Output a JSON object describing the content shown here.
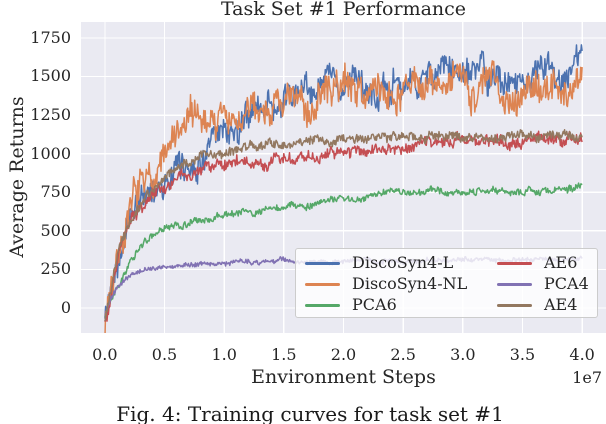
{
  "figure": {
    "caption": "Fig. 4: Training curves for task set #1"
  },
  "chart_data": {
    "type": "line",
    "title": "Task Set #1 Performance",
    "xlabel": "Environment Steps",
    "ylabel": "Average Returns",
    "x_offset_label": "1e7",
    "x_ticks": [
      0.0,
      0.5,
      1.0,
      1.5,
      2.0,
      2.5,
      3.0,
      3.5,
      4.0
    ],
    "x_tick_labels": [
      "0.0",
      "0.5",
      "1.0",
      "1.5",
      "2.0",
      "2.5",
      "3.0",
      "3.5",
      "4.0"
    ],
    "y_ticks": [
      0,
      250,
      500,
      750,
      1000,
      1250,
      1500,
      1750
    ],
    "xlim": [
      -0.2,
      4.2
    ],
    "ylim": [
      -162,
      1853
    ],
    "grid": true,
    "style": {
      "axes_background": "#EAEAF2",
      "grid_color": "#FFFFFF",
      "text_color": "#262626",
      "legend_border": "#CCCCCC"
    },
    "legend": {
      "position": "lower right",
      "columns": 2
    },
    "series": [
      {
        "name": "DiscoSyn4-L",
        "color": "#4C72B0",
        "seed": 42,
        "jitter": 70,
        "wander": 120,
        "envelope": [
          [
            0,
            -70
          ],
          [
            0.03,
            40
          ],
          [
            0.07,
            220
          ],
          [
            0.12,
            400
          ],
          [
            0.18,
            520
          ],
          [
            0.25,
            640
          ],
          [
            0.33,
            720
          ],
          [
            0.42,
            790
          ],
          [
            0.5,
            840
          ],
          [
            0.55,
            790
          ],
          [
            0.62,
            880
          ],
          [
            0.7,
            930
          ],
          [
            0.8,
            1000
          ],
          [
            0.9,
            1060
          ],
          [
            1.0,
            1140
          ],
          [
            1.1,
            1200
          ],
          [
            1.2,
            1250
          ],
          [
            1.35,
            1300
          ],
          [
            1.5,
            1330
          ],
          [
            1.65,
            1360
          ],
          [
            1.8,
            1390
          ],
          [
            2.0,
            1440
          ],
          [
            2.2,
            1460
          ],
          [
            2.4,
            1450
          ],
          [
            2.6,
            1480
          ],
          [
            2.8,
            1500
          ],
          [
            3.0,
            1520
          ],
          [
            3.2,
            1480
          ],
          [
            3.4,
            1490
          ],
          [
            3.6,
            1520
          ],
          [
            3.8,
            1550
          ],
          [
            3.9,
            1580
          ],
          [
            4.0,
            1620
          ]
        ]
      },
      {
        "name": "DiscoSyn4-NL",
        "color": "#DD8452",
        "seed": 7,
        "jitter": 85,
        "wander": 140,
        "envelope": [
          [
            0,
            -90
          ],
          [
            0.03,
            60
          ],
          [
            0.07,
            260
          ],
          [
            0.12,
            440
          ],
          [
            0.18,
            570
          ],
          [
            0.25,
            680
          ],
          [
            0.33,
            780
          ],
          [
            0.42,
            880
          ],
          [
            0.5,
            980
          ],
          [
            0.6,
            1090
          ],
          [
            0.7,
            1180
          ],
          [
            0.8,
            1240
          ],
          [
            0.9,
            1200
          ],
          [
            1.0,
            1260
          ],
          [
            1.1,
            1160
          ],
          [
            1.2,
            1240
          ],
          [
            1.35,
            1330
          ],
          [
            1.5,
            1350
          ],
          [
            1.6,
            1280
          ],
          [
            1.75,
            1330
          ],
          [
            1.9,
            1420
          ],
          [
            2.0,
            1450
          ],
          [
            2.2,
            1400
          ],
          [
            2.4,
            1440
          ],
          [
            2.6,
            1410
          ],
          [
            2.8,
            1430
          ],
          [
            3.0,
            1450
          ],
          [
            3.2,
            1470
          ],
          [
            3.35,
            1400
          ],
          [
            3.5,
            1420
          ],
          [
            3.65,
            1450
          ],
          [
            3.8,
            1390
          ],
          [
            3.9,
            1440
          ],
          [
            4.0,
            1490
          ]
        ]
      },
      {
        "name": "PCA6",
        "color": "#55A868",
        "seed": 13,
        "jitter": 16,
        "wander": 30,
        "envelope": [
          [
            0,
            -50
          ],
          [
            0.05,
            60
          ],
          [
            0.1,
            160
          ],
          [
            0.2,
            300
          ],
          [
            0.3,
            400
          ],
          [
            0.4,
            465
          ],
          [
            0.5,
            505
          ],
          [
            0.6,
            530
          ],
          [
            0.75,
            555
          ],
          [
            0.9,
            580
          ],
          [
            1.0,
            600
          ],
          [
            1.2,
            625
          ],
          [
            1.4,
            645
          ],
          [
            1.5,
            648
          ],
          [
            1.6,
            655
          ],
          [
            1.75,
            675
          ],
          [
            1.9,
            688
          ],
          [
            2.0,
            690
          ],
          [
            2.1,
            700
          ],
          [
            2.25,
            730
          ],
          [
            2.4,
            740
          ],
          [
            2.6,
            750
          ],
          [
            2.8,
            755
          ],
          [
            3.0,
            758
          ],
          [
            3.25,
            762
          ],
          [
            3.5,
            765
          ],
          [
            3.75,
            768
          ],
          [
            4.0,
            770
          ]
        ]
      },
      {
        "name": "AE6",
        "color": "#C44E52",
        "seed": 99,
        "jitter": 30,
        "wander": 45,
        "envelope": [
          [
            0,
            -100
          ],
          [
            0.04,
            60
          ],
          [
            0.08,
            230
          ],
          [
            0.13,
            390
          ],
          [
            0.2,
            520
          ],
          [
            0.28,
            620
          ],
          [
            0.36,
            690
          ],
          [
            0.45,
            745
          ],
          [
            0.55,
            800
          ],
          [
            0.65,
            855
          ],
          [
            0.75,
            890
          ],
          [
            0.85,
            910
          ],
          [
            1.0,
            925
          ],
          [
            1.2,
            940
          ],
          [
            1.4,
            950
          ],
          [
            1.6,
            962
          ],
          [
            1.8,
            980
          ],
          [
            2.0,
            1000
          ],
          [
            2.2,
            1025
          ],
          [
            2.4,
            1045
          ],
          [
            2.6,
            1060
          ],
          [
            2.8,
            1072
          ],
          [
            3.0,
            1080
          ],
          [
            3.25,
            1085
          ],
          [
            3.5,
            1090
          ],
          [
            3.75,
            1095
          ],
          [
            4.0,
            1100
          ]
        ]
      },
      {
        "name": "PCA4",
        "color": "#8172B3",
        "seed": 5,
        "jitter": 12,
        "wander": 18,
        "envelope": [
          [
            0,
            -40
          ],
          [
            0.05,
            55
          ],
          [
            0.1,
            125
          ],
          [
            0.18,
            190
          ],
          [
            0.25,
            225
          ],
          [
            0.35,
            250
          ],
          [
            0.45,
            262
          ],
          [
            0.55,
            270
          ],
          [
            0.7,
            280
          ],
          [
            0.85,
            288
          ],
          [
            1.0,
            293
          ],
          [
            1.25,
            300
          ],
          [
            1.5,
            305
          ],
          [
            1.75,
            308
          ],
          [
            2.0,
            310
          ],
          [
            2.5,
            311
          ],
          [
            3.0,
            311
          ],
          [
            3.5,
            312
          ],
          [
            4.0,
            313
          ]
        ]
      },
      {
        "name": "AE4",
        "color": "#937860",
        "seed": 21,
        "jitter": 26,
        "wander": 35,
        "envelope": [
          [
            0,
            -80
          ],
          [
            0.04,
            80
          ],
          [
            0.08,
            250
          ],
          [
            0.13,
            420
          ],
          [
            0.2,
            560
          ],
          [
            0.28,
            650
          ],
          [
            0.36,
            720
          ],
          [
            0.45,
            790
          ],
          [
            0.55,
            860
          ],
          [
            0.65,
            930
          ],
          [
            0.75,
            975
          ],
          [
            0.85,
            1000
          ],
          [
            1.0,
            1020
          ],
          [
            1.15,
            1040
          ],
          [
            1.3,
            1052
          ],
          [
            1.5,
            1065
          ],
          [
            1.75,
            1080
          ],
          [
            2.0,
            1090
          ],
          [
            2.25,
            1096
          ],
          [
            2.5,
            1100
          ],
          [
            2.75,
            1102
          ],
          [
            3.0,
            1103
          ],
          [
            3.25,
            1106
          ],
          [
            3.5,
            1110
          ],
          [
            3.75,
            1110
          ],
          [
            4.0,
            1112
          ]
        ]
      }
    ]
  }
}
